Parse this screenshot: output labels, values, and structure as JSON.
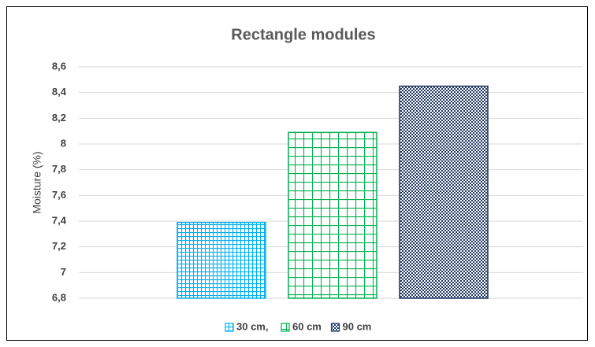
{
  "chart_data": {
    "type": "bar",
    "title": "Rectangle modules",
    "y_label": "Moisture (%)",
    "series": [
      {
        "name": "30 cm,",
        "color": "#00b0f0",
        "pattern": "small-grid",
        "values": [
          7.39
        ]
      },
      {
        "name": "60 cm",
        "color": "#00b050",
        "pattern": "large-grid",
        "values": [
          8.09
        ]
      },
      {
        "name": "90 cm",
        "color": "#1f3864",
        "pattern": "checker",
        "values": [
          8.45
        ]
      }
    ],
    "ylim": [
      6.8,
      8.6
    ],
    "yticks": [
      {
        "value": 6.8,
        "label": "6,8"
      },
      7,
      {
        "value": 7.2,
        "label": "7,2"
      },
      {
        "value": 7.4,
        "label": "7,4"
      },
      {
        "value": 7.6,
        "label": "7,6"
      },
      {
        "value": 7.8,
        "label": "7,8"
      },
      8,
      {
        "value": 8.2,
        "label": "8,2"
      },
      {
        "value": 8.4,
        "label": "8,4"
      },
      {
        "value": 8.6,
        "label": "8,6"
      }
    ],
    "grid": true,
    "legend": "bottom"
  }
}
